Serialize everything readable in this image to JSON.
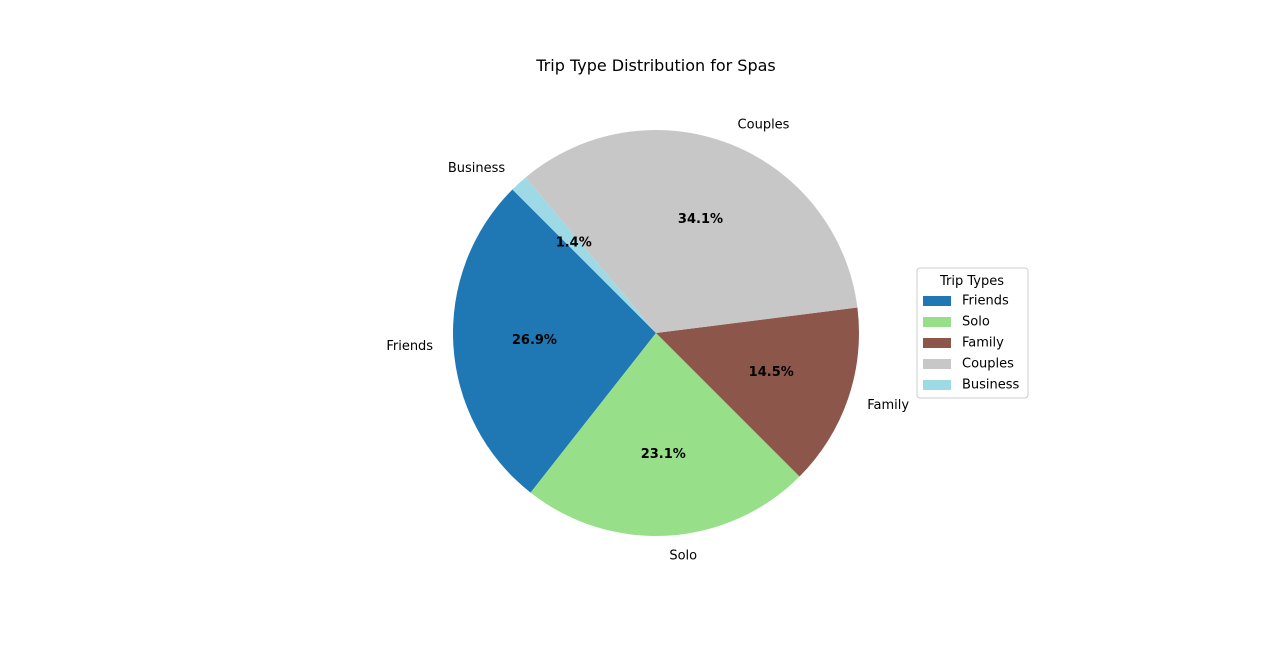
{
  "chart_data": {
    "type": "pie",
    "title": "Trip Type Distribution for Spas",
    "categories": [
      "Friends",
      "Solo",
      "Family",
      "Couples",
      "Business"
    ],
    "values": [
      26.9,
      23.1,
      14.5,
      34.1,
      1.4
    ],
    "value_labels": [
      "26.9%",
      "23.1%",
      "14.5%",
      "34.1%",
      "1.4%"
    ],
    "colors": [
      "#1f77b4",
      "#98df8a",
      "#8c564b",
      "#c7c7c7",
      "#9edae5"
    ],
    "start_angle_deg": 135,
    "direction": "counterclockwise",
    "legend": {
      "title": "Trip Types",
      "placement": "right",
      "entries": [
        "Friends",
        "Solo",
        "Family",
        "Couples",
        "Business"
      ]
    }
  }
}
